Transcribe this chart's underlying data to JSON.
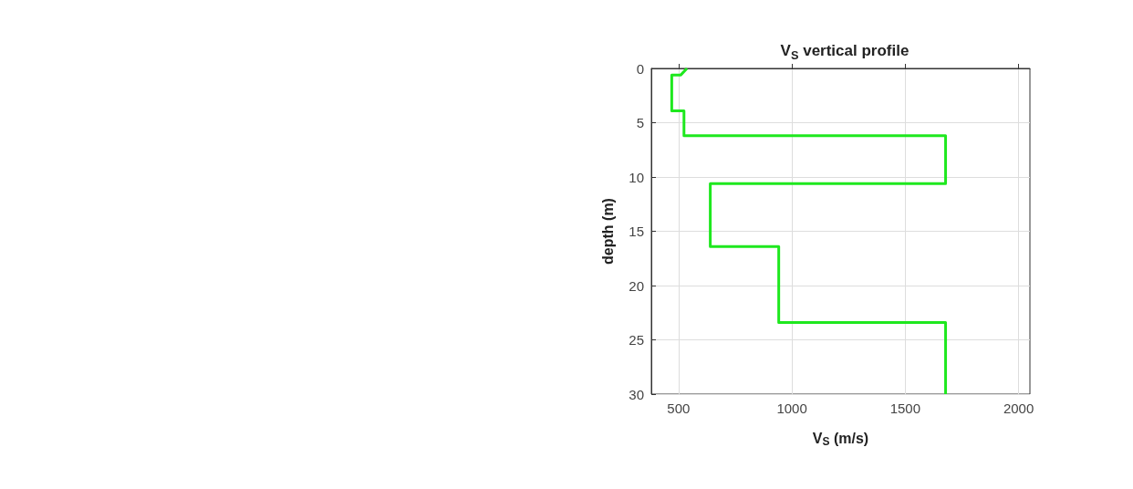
{
  "chart_data": {
    "type": "line",
    "title": "V$_{S}$ vertical profile",
    "xlabel": "V$_{S}$ (m/s)",
    "ylabel": "depth (m)",
    "series": [
      {
        "color": "#1ee81e",
        "x": [
          537,
          510,
          470,
          470,
          524,
          524,
          1678,
          1678,
          640,
          640,
          942,
          942,
          1678,
          1678
        ],
        "values": [
          0,
          0.6,
          0.6,
          3.9,
          3.9,
          6.2,
          6.2,
          10.6,
          10.6,
          16.4,
          16.4,
          23.4,
          23.4,
          30
        ]
      }
    ],
    "xlim": [
      380,
      2050
    ],
    "xticks": [
      500,
      1000,
      1500,
      2000
    ],
    "ylim": [
      30,
      0
    ],
    "yticks": [
      0,
      5,
      10,
      15,
      20,
      25,
      30
    ],
    "grid": true,
    "marker": "none",
    "line_style": "solid"
  }
}
